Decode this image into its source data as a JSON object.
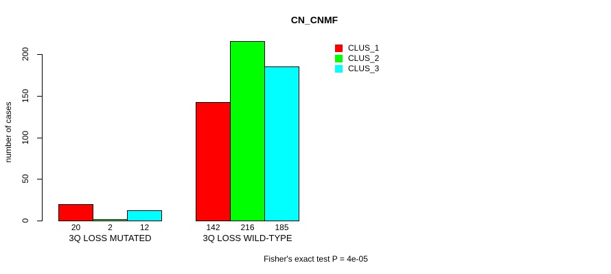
{
  "title": "CN_CNMF",
  "ylabel": "number of cases",
  "footer": "Fisher's exact test P = 4e-05",
  "legend": {
    "items": [
      {
        "label": "CLUS_1",
        "color": "#ff0000"
      },
      {
        "label": "CLUS_2",
        "color": "#00ff00"
      },
      {
        "label": "CLUS_3",
        "color": "#00ffff"
      }
    ]
  },
  "chart_data": {
    "type": "bar",
    "title": "CN_CNMF",
    "xlabel": "",
    "ylabel": "number of cases",
    "categories": [
      "3Q LOSS MUTATED",
      "3Q LOSS WILD-TYPE"
    ],
    "series": [
      {
        "name": "CLUS_1",
        "color": "#ff0000",
        "values": [
          20,
          142
        ]
      },
      {
        "name": "CLUS_2",
        "color": "#00ff00",
        "values": [
          2,
          216
        ]
      },
      {
        "name": "CLUS_3",
        "color": "#00ffff",
        "values": [
          12,
          185
        ]
      }
    ],
    "bar_value_labels": [
      [
        "20",
        "2",
        "12"
      ],
      [
        "142",
        "216",
        "185"
      ]
    ],
    "yticks": [
      0,
      50,
      100,
      150,
      200
    ],
    "ylim": [
      0,
      222
    ],
    "grid": false,
    "legend_position": "top-right",
    "annotation": "Fisher's exact test P = 4e-05"
  }
}
